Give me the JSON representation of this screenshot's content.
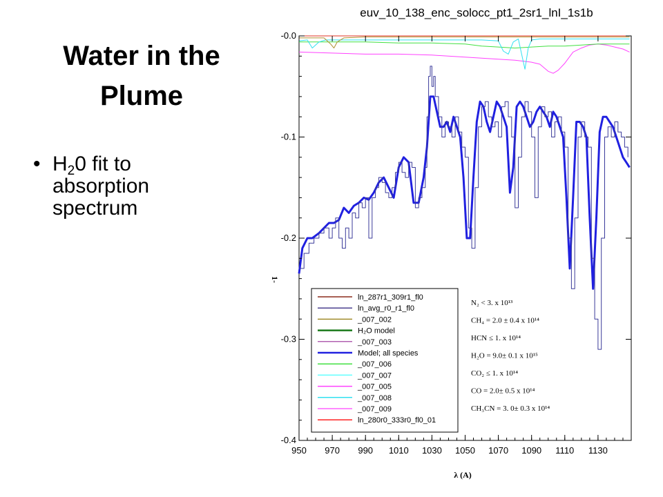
{
  "slide": {
    "title_line1": "Water in the",
    "title_line2": "Plume",
    "bullet_char": "•",
    "bullet_pre": "H",
    "bullet_sub": "2",
    "bullet_line1_rest": "0 fit to",
    "bullet_line2": "absorption",
    "bullet_line3": "spectrum"
  },
  "chart_data": {
    "type": "line",
    "title": "euv_10_138_enc_solocc_pt1_2sr1_lnI_1s1b",
    "xlabel": "λ (A)",
    "ylabel": "1-",
    "xlim": [
      950,
      1150
    ],
    "ylim": [
      -0.4,
      0.0
    ],
    "xticks": [
      950,
      970,
      990,
      1010,
      1030,
      1050,
      1070,
      1090,
      1110,
      1130
    ],
    "yticks": [
      {
        "value": 0.0,
        "label": "-0.0"
      },
      {
        "value": -0.1,
        "label": "-0.1"
      },
      {
        "value": -0.2,
        "label": "-0.2"
      },
      {
        "value": -0.3,
        "label": "-0.3"
      },
      {
        "value": -0.4,
        "label": "-0.4"
      }
    ],
    "legend": {
      "position": "lower-left",
      "entries": [
        {
          "label": "ln_287r1_309r1_fl0",
          "color": "#8b2a1a"
        },
        {
          "label": "ln_avg_r0_r1_fl0",
          "color": "#4a3f8f"
        },
        {
          "label": "_007_002",
          "color": "#a08a2a"
        },
        {
          "label": "H₂O model",
          "color": "#1a7a1a"
        },
        {
          "label": "_007_003",
          "color": "#b060b0"
        },
        {
          "label": "Model; all species",
          "color": "#2020e0"
        },
        {
          "label": "_007_006",
          "color": "#40e040"
        },
        {
          "label": "_007_007",
          "color": "#60ffff"
        },
        {
          "label": "_007_005",
          "color": "#ff40ff"
        },
        {
          "label": "_007_008",
          "color": "#30e0f0"
        },
        {
          "label": "_007_009",
          "color": "#ff60ff"
        },
        {
          "label": "ln_280r0_333r0_fl0_01",
          "color": "#ff2020"
        }
      ]
    },
    "annotations": [
      "N₂ < 3. x 10¹³",
      "CH₄ = 2.0 ± 0.4 x 10¹⁴",
      "HCN ≤ 1. x 10¹⁴",
      "H₂O = 9.0± 0.1 x 10¹⁵",
      "CO₂ ≤ 1. x 10¹⁴",
      "CO = 2.0± 0.5 x 10¹⁴",
      "CH₃CN = 3. 0± 0.3 x 10¹⁴"
    ],
    "series": [
      {
        "name": "Model; all species",
        "color": "#2020e0",
        "width": 3,
        "step": false,
        "x": [
          950,
          952,
          955,
          958,
          962,
          965,
          968,
          971,
          974,
          977,
          980,
          983,
          986,
          989,
          992,
          995,
          998,
          1001,
          1004,
          1007,
          1010,
          1013,
          1016,
          1019,
          1022,
          1025,
          1027,
          1029,
          1031,
          1033,
          1035,
          1037,
          1039,
          1041,
          1043,
          1045,
          1047,
          1049,
          1051,
          1053,
          1055,
          1057,
          1059,
          1061,
          1063,
          1065,
          1067,
          1069,
          1071,
          1073,
          1075,
          1077,
          1079,
          1081,
          1083,
          1085,
          1087,
          1089,
          1091,
          1093,
          1095,
          1097,
          1099,
          1101,
          1103,
          1105,
          1107,
          1109,
          1111,
          1113,
          1115,
          1117,
          1119,
          1121,
          1123,
          1125,
          1127,
          1129,
          1131,
          1133,
          1135,
          1137,
          1139,
          1141,
          1143,
          1145,
          1147,
          1149
        ],
        "y": [
          -0.235,
          -0.21,
          -0.2,
          -0.2,
          -0.195,
          -0.19,
          -0.185,
          -0.185,
          -0.182,
          -0.17,
          -0.175,
          -0.168,
          -0.165,
          -0.16,
          -0.162,
          -0.155,
          -0.145,
          -0.14,
          -0.15,
          -0.16,
          -0.13,
          -0.12,
          -0.125,
          -0.165,
          -0.165,
          -0.14,
          -0.11,
          -0.06,
          -0.06,
          -0.075,
          -0.09,
          -0.09,
          -0.085,
          -0.095,
          -0.08,
          -0.09,
          -0.1,
          -0.14,
          -0.2,
          -0.2,
          -0.14,
          -0.085,
          -0.065,
          -0.07,
          -0.085,
          -0.095,
          -0.08,
          -0.065,
          -0.07,
          -0.08,
          -0.09,
          -0.155,
          -0.13,
          -0.07,
          -0.065,
          -0.07,
          -0.08,
          -0.09,
          -0.085,
          -0.075,
          -0.07,
          -0.075,
          -0.08,
          -0.09,
          -0.075,
          -0.08,
          -0.09,
          -0.1,
          -0.16,
          -0.23,
          -0.16,
          -0.085,
          -0.085,
          -0.09,
          -0.1,
          -0.18,
          -0.25,
          -0.18,
          -0.095,
          -0.08,
          -0.08,
          -0.085,
          -0.09,
          -0.1,
          -0.11,
          -0.12,
          -0.125,
          -0.13
        ]
      },
      {
        "name": "ln_avg_r0_r1_fl0",
        "color": "#3a3a9a",
        "width": 1,
        "step": true,
        "x": [
          950,
          953,
          956,
          959,
          962,
          965,
          968,
          970,
          972,
          974,
          976,
          978,
          980,
          982,
          984,
          986,
          988,
          990,
          992,
          994,
          996,
          998,
          1000,
          1002,
          1004,
          1006,
          1008,
          1010,
          1012,
          1014,
          1016,
          1018,
          1020,
          1022,
          1024,
          1026,
          1027,
          1028,
          1029,
          1030,
          1031,
          1032,
          1034,
          1036,
          1038,
          1040,
          1042,
          1044,
          1046,
          1048,
          1050,
          1052,
          1054,
          1056,
          1058,
          1060,
          1062,
          1064,
          1066,
          1068,
          1070,
          1072,
          1074,
          1076,
          1078,
          1080,
          1082,
          1084,
          1086,
          1088,
          1090,
          1092,
          1094,
          1096,
          1098,
          1100,
          1102,
          1104,
          1106,
          1108,
          1110,
          1112,
          1114,
          1116,
          1118,
          1120,
          1122,
          1124,
          1126,
          1128,
          1130,
          1132,
          1134,
          1136,
          1138,
          1140,
          1142,
          1144,
          1146,
          1148
        ],
        "y": [
          -0.23,
          -0.215,
          -0.205,
          -0.2,
          -0.195,
          -0.19,
          -0.2,
          -0.19,
          -0.18,
          -0.2,
          -0.21,
          -0.19,
          -0.2,
          -0.175,
          -0.18,
          -0.165,
          -0.17,
          -0.16,
          -0.2,
          -0.16,
          -0.15,
          -0.14,
          -0.145,
          -0.155,
          -0.16,
          -0.15,
          -0.135,
          -0.125,
          -0.135,
          -0.14,
          -0.125,
          -0.13,
          -0.17,
          -0.16,
          -0.15,
          -0.13,
          -0.08,
          -0.04,
          -0.03,
          -0.05,
          -0.04,
          -0.06,
          -0.08,
          -0.1,
          -0.085,
          -0.09,
          -0.1,
          -0.08,
          -0.095,
          -0.11,
          -0.12,
          -0.19,
          -0.21,
          -0.15,
          -0.09,
          -0.07,
          -0.065,
          -0.08,
          -0.09,
          -0.085,
          -0.1,
          -0.07,
          -0.065,
          -0.08,
          -0.1,
          -0.17,
          -0.12,
          -0.08,
          -0.065,
          -0.075,
          -0.1,
          -0.16,
          -0.09,
          -0.07,
          -0.08,
          -0.075,
          -0.1,
          -0.085,
          -0.08,
          -0.095,
          -0.11,
          -0.2,
          -0.25,
          -0.18,
          -0.1,
          -0.085,
          -0.1,
          -0.11,
          -0.22,
          -0.28,
          -0.31,
          -0.2,
          -0.1,
          -0.09,
          -0.1,
          -0.085,
          -0.095,
          -0.1,
          -0.11,
          -0.12
        ]
      },
      {
        "name": "_007_005",
        "color": "#ff40ff",
        "width": 1,
        "step": false,
        "x": [
          950,
          970,
          990,
          1010,
          1030,
          1050,
          1060,
          1070,
          1080,
          1090,
          1095,
          1100,
          1103,
          1106,
          1110,
          1115,
          1120,
          1125,
          1130,
          1135,
          1140,
          1145,
          1149
        ],
        "y": [
          -0.016,
          -0.017,
          -0.018,
          -0.018,
          -0.019,
          -0.021,
          -0.022,
          -0.023,
          -0.024,
          -0.026,
          -0.028,
          -0.035,
          -0.037,
          -0.034,
          -0.027,
          -0.016,
          -0.012,
          -0.009,
          -0.008,
          -0.009,
          -0.011,
          -0.013,
          -0.016
        ]
      },
      {
        "name": "_007_006",
        "color": "#40e040",
        "width": 1,
        "step": false,
        "x": [
          950,
          970,
          990,
          1010,
          1030,
          1050,
          1060,
          1070,
          1080,
          1090,
          1100,
          1110,
          1120,
          1130,
          1140,
          1149
        ],
        "y": [
          -0.006,
          -0.006,
          -0.006,
          -0.007,
          -0.007,
          -0.008,
          -0.01,
          -0.011,
          -0.012,
          -0.011,
          -0.01,
          -0.01,
          -0.009,
          -0.008,
          -0.008,
          -0.008
        ]
      },
      {
        "name": "_007_008",
        "color": "#30e0f0",
        "width": 1,
        "step": false,
        "x": [
          950,
          955,
          958,
          962,
          966,
          970,
          975,
          980,
          985,
          990,
          1000,
          1010,
          1020,
          1030,
          1040,
          1050,
          1060,
          1070,
          1073,
          1076,
          1079,
          1082,
          1084,
          1086,
          1088,
          1090,
          1095,
          1100,
          1110,
          1120,
          1130,
          1149
        ],
        "y": [
          -0.005,
          -0.004,
          -0.012,
          -0.006,
          -0.004,
          -0.004,
          -0.004,
          -0.004,
          -0.004,
          -0.004,
          -0.004,
          -0.004,
          -0.004,
          -0.004,
          -0.004,
          -0.004,
          -0.004,
          -0.005,
          -0.015,
          -0.018,
          -0.006,
          -0.003,
          -0.018,
          -0.033,
          -0.012,
          -0.004,
          -0.003,
          -0.003,
          -0.003,
          -0.003,
          -0.003,
          -0.003
        ]
      },
      {
        "name": "_007_002",
        "color": "#b09030",
        "width": 1,
        "step": false,
        "x": [
          950,
          965,
          969,
          971,
          973,
          977,
          990,
          1010,
          1030,
          1050,
          1070,
          1090,
          1110,
          1130,
          1149
        ],
        "y": [
          -0.002,
          -0.002,
          -0.008,
          -0.012,
          -0.006,
          -0.002,
          -0.001,
          -0.001,
          -0.001,
          -0.001,
          -0.001,
          -0.001,
          -0.001,
          -0.001,
          -0.001
        ]
      },
      {
        "name": "ln_280r0_333r0_fl0_01",
        "color": "#e03020",
        "width": 1,
        "step": false,
        "x": [
          950,
          1149
        ],
        "y": [
          0.0,
          0.0
        ]
      }
    ]
  }
}
